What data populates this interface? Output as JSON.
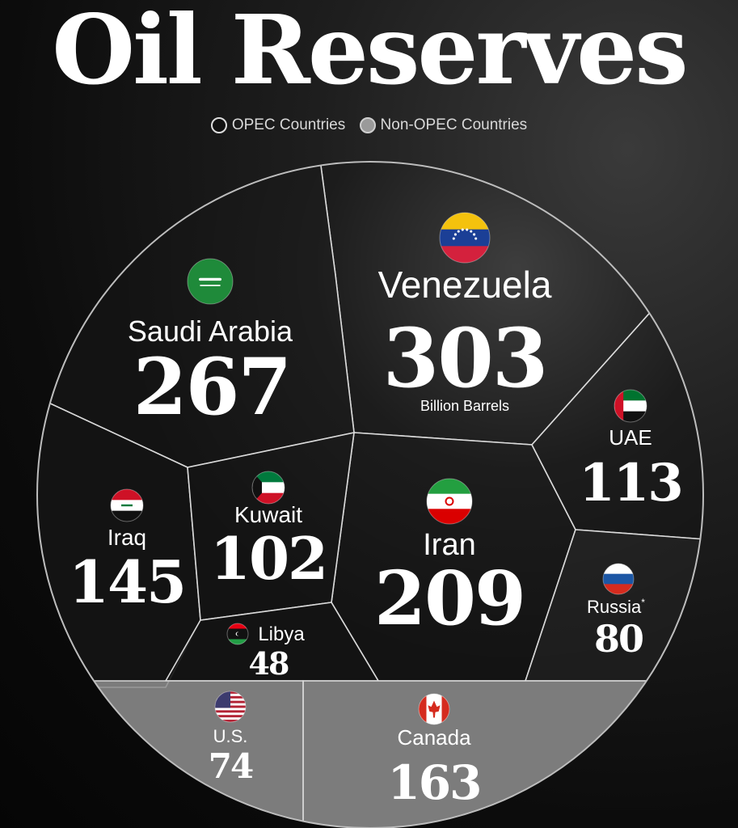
{
  "title": "Oil Reserves",
  "legend": {
    "opec": "OPEC Countries",
    "non_opec": "Non-OPEC Countries"
  },
  "unit_label": "Billion Barrels",
  "colors": {
    "opec": "#141414",
    "non_opec": "#8e8e8e",
    "border": "#d9d9d9"
  },
  "chart_data": {
    "type": "voronoi",
    "title": "Oil Reserves",
    "unit": "Billion Barrels",
    "series": [
      {
        "name": "OPEC Countries",
        "points": [
          {
            "country": "Venezuela",
            "value": 303,
            "flag": "venezuela-flag"
          },
          {
            "country": "Saudi Arabia",
            "value": 267,
            "flag": "saudi-arabia-flag"
          },
          {
            "country": "Iran",
            "value": 209,
            "flag": "iran-flag"
          },
          {
            "country": "Iraq",
            "value": 145,
            "flag": "iraq-flag"
          },
          {
            "country": "UAE",
            "value": 113,
            "flag": "uae-flag"
          },
          {
            "country": "Kuwait",
            "value": 102,
            "flag": "kuwait-flag"
          },
          {
            "country": "Libya",
            "value": 48,
            "flag": "libya-flag"
          }
        ]
      },
      {
        "name": "Non-OPEC Countries",
        "points": [
          {
            "country": "Russia",
            "value": 80,
            "flag": "russia-flag",
            "note": "*"
          },
          {
            "country": "Canada",
            "value": 163,
            "flag": "canada-flag"
          },
          {
            "country": "U.S.",
            "value": 74,
            "flag": "us-flag"
          }
        ]
      }
    ]
  }
}
